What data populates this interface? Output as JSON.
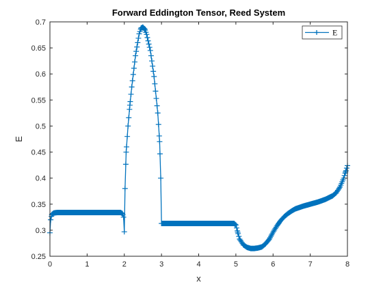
{
  "chart_data": {
    "type": "line",
    "title": "Forward Eddington Tensor, Reed System",
    "xlabel": "x",
    "ylabel": "E",
    "xlim": [
      0,
      8
    ],
    "ylim": [
      0.25,
      0.7
    ],
    "x_ticks": [
      "0",
      "1",
      "2",
      "3",
      "4",
      "5",
      "6",
      "7",
      "8"
    ],
    "y_ticks": [
      "0.25",
      "0.3",
      "0.35",
      "0.4",
      "0.45",
      "0.5",
      "0.55",
      "0.6",
      "0.65",
      "0.7"
    ],
    "grid": false,
    "legend": {
      "position": "top-right",
      "entries": [
        "E"
      ]
    },
    "series": [
      {
        "name": "E",
        "color": "#0072BD",
        "marker": "+",
        "x": [
          0.0,
          0.02,
          0.05,
          0.1,
          0.2,
          0.5,
          1.0,
          1.5,
          1.9,
          1.95,
          1.98,
          2.0,
          2.02,
          2.05,
          2.1,
          2.15,
          2.2,
          2.3,
          2.4,
          2.45,
          2.5,
          2.55,
          2.6,
          2.7,
          2.8,
          2.9,
          2.95,
          2.98,
          3.0,
          3.02,
          3.1,
          3.5,
          4.0,
          4.5,
          4.95,
          5.0,
          5.05,
          5.1,
          5.2,
          5.3,
          5.4,
          5.5,
          5.6,
          5.7,
          5.8,
          5.9,
          6.0,
          6.1,
          6.2,
          6.3,
          6.4,
          6.5,
          6.6,
          6.8,
          7.0,
          7.2,
          7.4,
          7.6,
          7.7,
          7.8,
          7.9,
          7.95,
          8.0
        ],
        "y": [
          0.295,
          0.32,
          0.33,
          0.333,
          0.334,
          0.334,
          0.334,
          0.334,
          0.334,
          0.332,
          0.325,
          0.297,
          0.38,
          0.45,
          0.5,
          0.54,
          0.575,
          0.635,
          0.677,
          0.688,
          0.69,
          0.686,
          0.676,
          0.645,
          0.595,
          0.525,
          0.47,
          0.4,
          0.313,
          0.313,
          0.313,
          0.313,
          0.313,
          0.313,
          0.313,
          0.31,
          0.296,
          0.283,
          0.272,
          0.267,
          0.265,
          0.265,
          0.266,
          0.268,
          0.274,
          0.283,
          0.296,
          0.308,
          0.318,
          0.326,
          0.332,
          0.337,
          0.341,
          0.346,
          0.35,
          0.354,
          0.359,
          0.366,
          0.372,
          0.383,
          0.4,
          0.412,
          0.424
        ]
      }
    ]
  }
}
